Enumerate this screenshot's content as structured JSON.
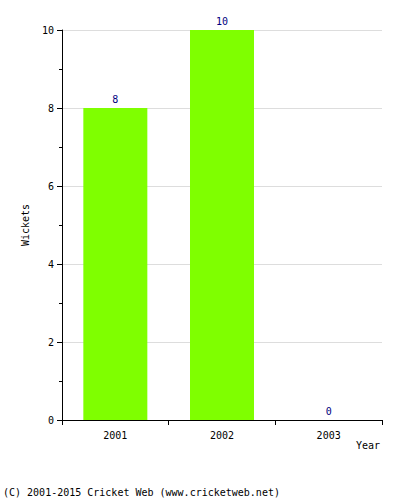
{
  "chart_data": {
    "type": "bar",
    "x_label": "Year",
    "y_label": "Wickets",
    "categories": [
      "2001",
      "2002",
      "2003"
    ],
    "values": [
      8,
      10,
      0
    ],
    "color": "#7fff00",
    "ylim": [
      0,
      10
    ],
    "yticks": [
      0,
      2,
      4,
      6,
      8,
      10
    ],
    "grid": true,
    "data_labels": true,
    "annotations": [
      "(C) 2001-2015 Cricket Web (www.cricketweb.net)"
    ]
  }
}
